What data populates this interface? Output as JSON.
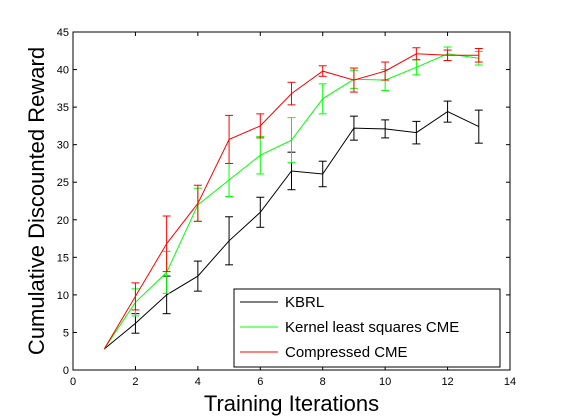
{
  "chart_data": {
    "type": "line",
    "title": "",
    "xlabel": "Training Iterations",
    "ylabel": "Cumulative Discounted Reward",
    "xlim": [
      0,
      14
    ],
    "ylim": [
      0,
      45
    ],
    "xticks": [
      0,
      2,
      4,
      6,
      8,
      10,
      12,
      14
    ],
    "yticks": [
      0,
      5,
      10,
      15,
      20,
      25,
      30,
      35,
      40,
      45
    ],
    "grid": false,
    "legend_position": "bottom-right",
    "series": [
      {
        "name": "KBRL",
        "color": "#000000",
        "x": [
          1,
          2,
          3,
          4,
          5,
          6,
          7,
          8,
          9,
          10,
          11,
          12,
          13
        ],
        "y": [
          2.8,
          6.2,
          10.0,
          12.5,
          17.2,
          21.0,
          26.5,
          26.1,
          32.2,
          32.1,
          31.6,
          34.4,
          32.4
        ],
        "err": [
          0,
          1.3,
          2.5,
          2.0,
          3.2,
          2.0,
          2.5,
          1.7,
          1.6,
          1.2,
          1.5,
          1.4,
          2.2
        ]
      },
      {
        "name": "Kernel least squares CME",
        "color": "#00ff00",
        "x": [
          1,
          2,
          3,
          4,
          5,
          6,
          7,
          8,
          9,
          10,
          11,
          12,
          13
        ],
        "y": [
          2.8,
          9.0,
          13.0,
          22.0,
          25.3,
          28.6,
          30.6,
          36.1,
          38.7,
          38.6,
          40.3,
          42.1,
          41.5
        ],
        "err": [
          0,
          1.8,
          2.8,
          2.2,
          2.2,
          2.5,
          3.0,
          2.0,
          1.2,
          1.4,
          1.0,
          0.9,
          0.9
        ]
      },
      {
        "name": "Compressed CME",
        "color": "#ff0000",
        "x": [
          1,
          2,
          3,
          4,
          5,
          6,
          7,
          8,
          9,
          10,
          11,
          12,
          13
        ],
        "y": [
          2.8,
          9.8,
          16.8,
          22.2,
          30.7,
          32.5,
          36.8,
          39.8,
          38.6,
          39.8,
          42.1,
          41.9,
          41.9
        ],
        "err": [
          0,
          1.8,
          3.7,
          2.4,
          3.2,
          1.6,
          1.5,
          0.7,
          1.6,
          1.2,
          0.8,
          0.7,
          0.9
        ]
      }
    ]
  }
}
